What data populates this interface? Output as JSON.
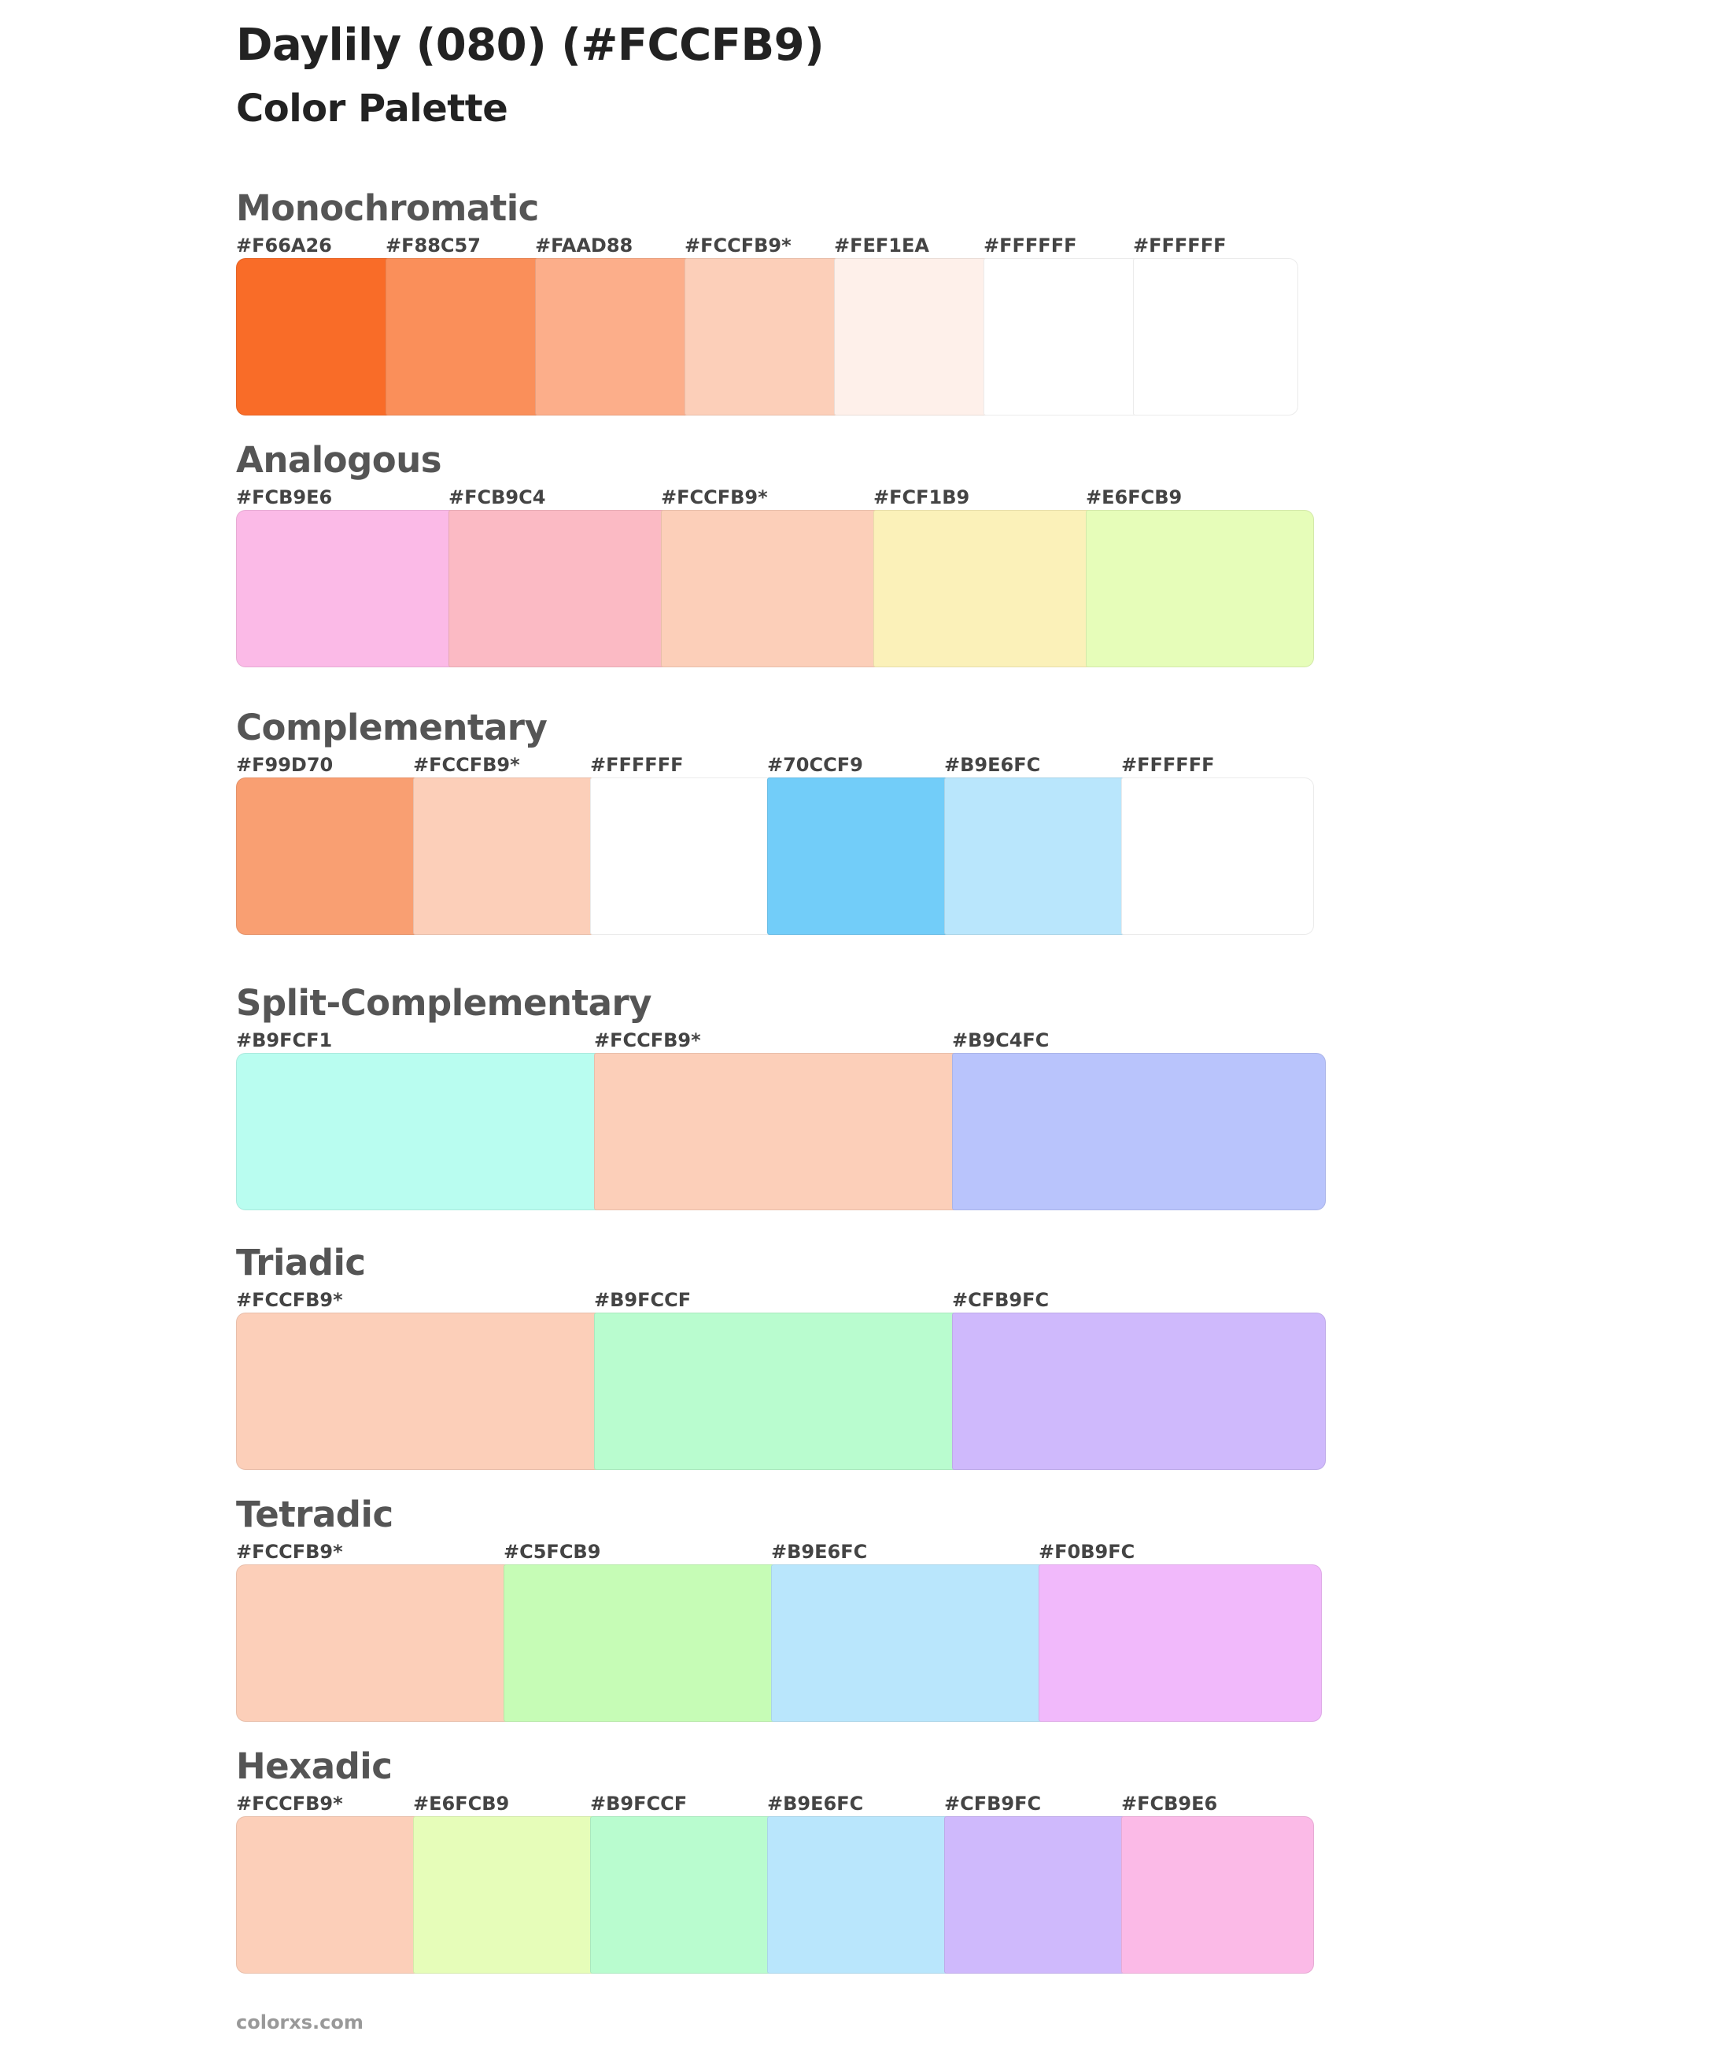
{
  "title": "Daylily (080) (#FCCFB9)",
  "subtitle": "Color Palette",
  "footer": "colorxs.com",
  "sections": [
    {
      "heading": "Monochromatic",
      "swatches": [
        {
          "label": "#F66A26",
          "color": "#F96C28"
        },
        {
          "label": "#F88C57",
          "color": "#FA8F5A"
        },
        {
          "label": "#FAAD88",
          "color": "#FCAE8A"
        },
        {
          "label": "#FCCFB9*",
          "color": "#FCCFB9"
        },
        {
          "label": "#FEF1EA",
          "color": "#FEF0EA"
        },
        {
          "label": "#FFFFFF",
          "color": "#FFFFFF"
        },
        {
          "label": "#FFFFFF",
          "color": "#FFFFFF"
        }
      ]
    },
    {
      "heading": "Analogous",
      "swatches": [
        {
          "label": "#FCB9E6",
          "color": "#FBBAE7"
        },
        {
          "label": "#FCB9C4",
          "color": "#FBBAC4"
        },
        {
          "label": "#FCCFB9*",
          "color": "#FCCFB9"
        },
        {
          "label": "#FCF1B9",
          "color": "#FBF1B9"
        },
        {
          "label": "#E6FCB9",
          "color": "#E6FDB9"
        }
      ]
    },
    {
      "heading": "Complementary",
      "swatches": [
        {
          "label": "#F99D70",
          "color": "#F99F72"
        },
        {
          "label": "#FCCFB9*",
          "color": "#FCCFB9"
        },
        {
          "label": "#FFFFFF",
          "color": "#FFFFFF"
        },
        {
          "label": "#70CCF9",
          "color": "#72CDF9"
        },
        {
          "label": "#B9E6FC",
          "color": "#B9E6FC"
        },
        {
          "label": "#FFFFFF",
          "color": "#FFFFFF"
        }
      ]
    },
    {
      "heading": "Split-Complementary",
      "swatches": [
        {
          "label": "#B9FCF1",
          "color": "#B9FDF0"
        },
        {
          "label": "#FCCFB9*",
          "color": "#FCCFB9"
        },
        {
          "label": "#B9C4FC",
          "color": "#B9C4FC"
        }
      ]
    },
    {
      "heading": "Triadic",
      "swatches": [
        {
          "label": "#FCCFB9*",
          "color": "#FCCFB9"
        },
        {
          "label": "#B9FCCF",
          "color": "#B9FCCF"
        },
        {
          "label": "#CFB9FC",
          "color": "#CFB9FC"
        }
      ]
    },
    {
      "heading": "Tetradic",
      "swatches": [
        {
          "label": "#FCCFB9*",
          "color": "#FCCFB9"
        },
        {
          "label": "#C5FCB9",
          "color": "#C6FCB6"
        },
        {
          "label": "#B9E6FC",
          "color": "#B9E6FC"
        },
        {
          "label": "#F0B9FC",
          "color": "#F1B9FB"
        }
      ]
    },
    {
      "heading": "Hexadic",
      "swatches": [
        {
          "label": "#FCCFB9*",
          "color": "#FCCFB9"
        },
        {
          "label": "#E6FCB9",
          "color": "#E6FDB9"
        },
        {
          "label": "#B9FCCF",
          "color": "#B9FCCF"
        },
        {
          "label": "#B9E6FC",
          "color": "#B9E6FC"
        },
        {
          "label": "#CFB9FC",
          "color": "#CFB9FC"
        },
        {
          "label": "#FCB9E6",
          "color": "#FBBAE7"
        }
      ]
    }
  ]
}
